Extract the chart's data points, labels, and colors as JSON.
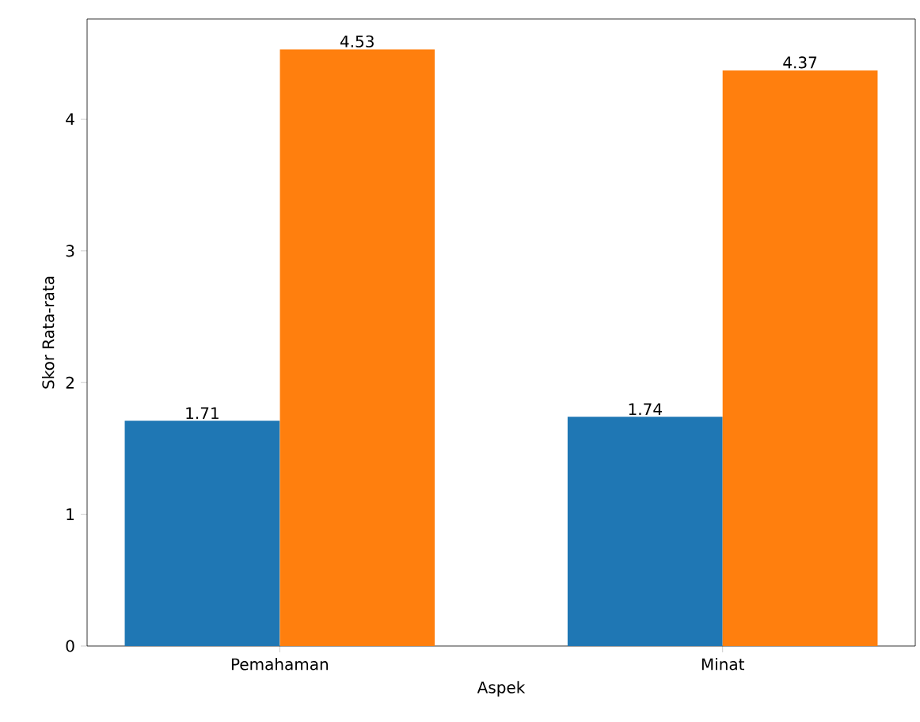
{
  "chart_data": {
    "type": "bar",
    "xlabel": "Aspek",
    "ylabel": "Skor Rata-rata",
    "categories": [
      "Pemahaman",
      "Minat"
    ],
    "series": [
      {
        "color": "#1f77b4",
        "values": [
          1.71,
          1.74
        ]
      },
      {
        "color": "#ff7f0e",
        "values": [
          4.53,
          4.37
        ]
      }
    ],
    "ylim": [
      0,
      4.76
    ],
    "yticks": [
      0,
      1,
      2,
      3,
      4
    ],
    "data_labels": true
  }
}
